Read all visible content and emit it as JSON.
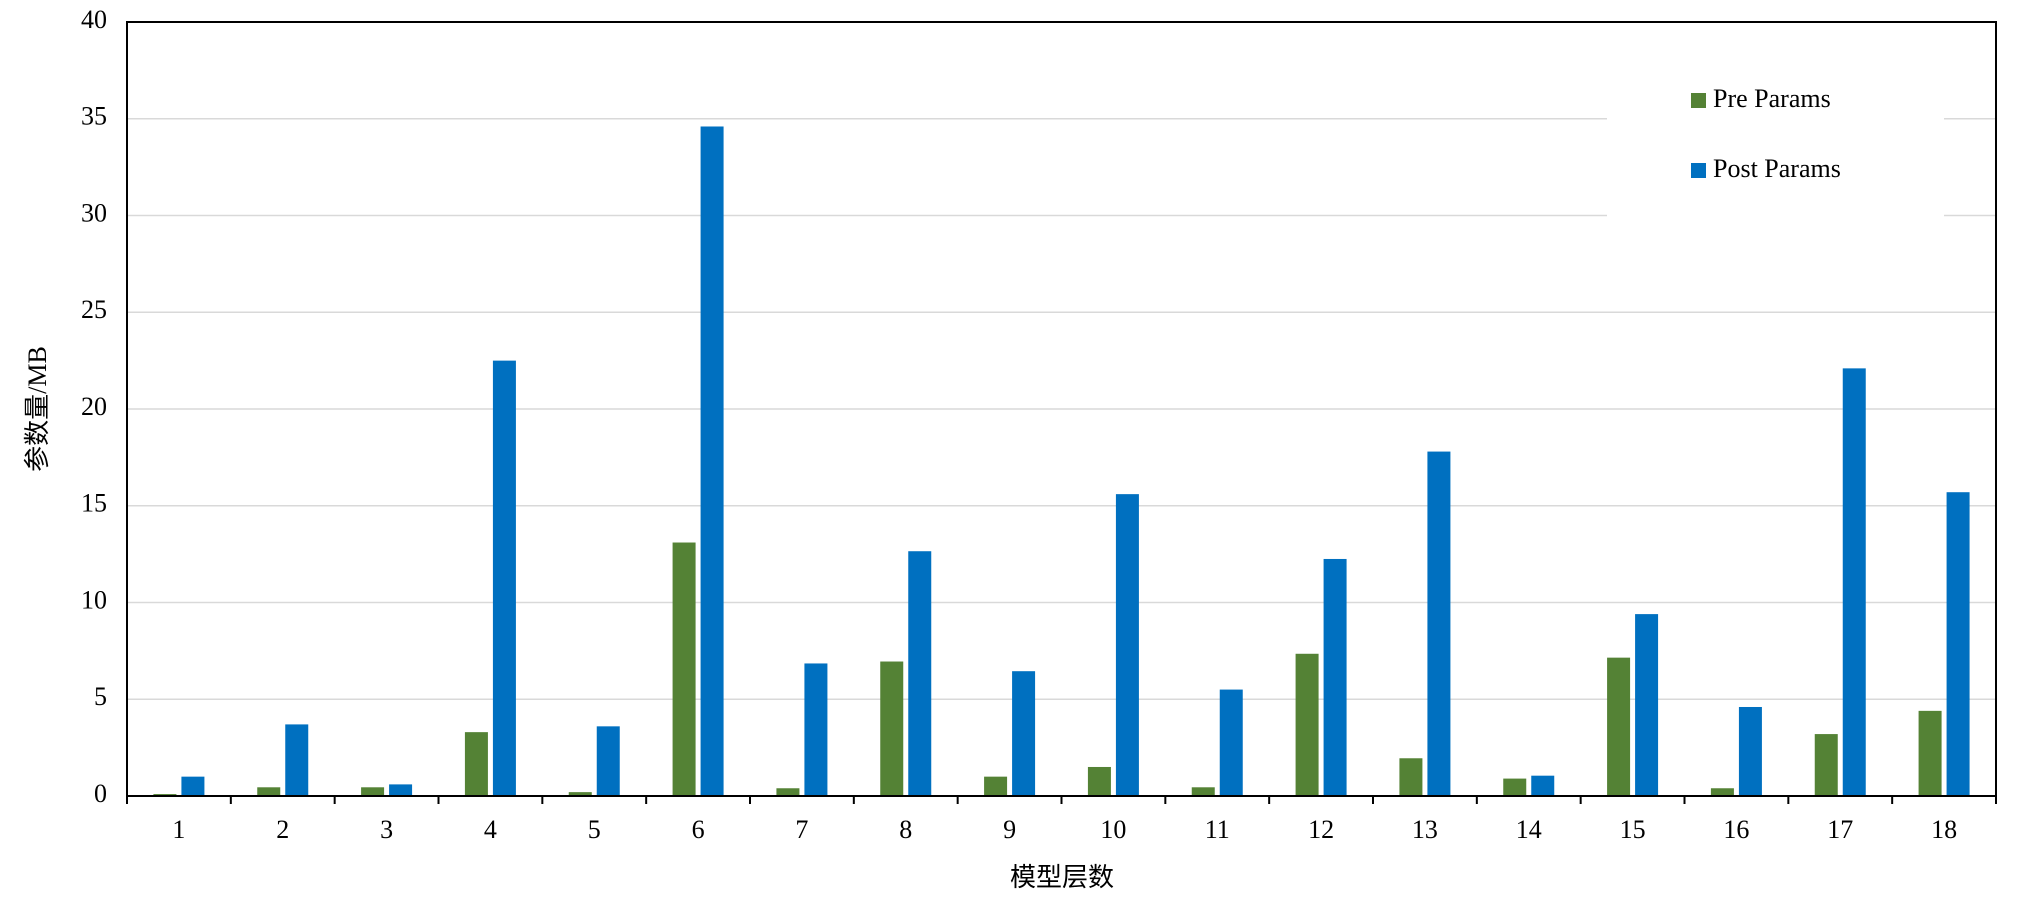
{
  "chart_data": {
    "type": "bar",
    "x_label": "模型层数",
    "y_label": "参数量/MB",
    "categories": [
      "1",
      "2",
      "3",
      "4",
      "5",
      "6",
      "7",
      "8",
      "9",
      "10",
      "11",
      "12",
      "13",
      "14",
      "15",
      "16",
      "17",
      "18"
    ],
    "series": [
      {
        "name": "Pre Params",
        "color": "#548235",
        "values": [
          0.1,
          0.45,
          0.45,
          3.3,
          0.2,
          13.1,
          0.4,
          6.95,
          1.0,
          1.5,
          0.45,
          7.35,
          1.95,
          0.9,
          7.15,
          0.4,
          3.2,
          4.4
        ]
      },
      {
        "name": "Post Params",
        "color": "#0070c0",
        "values": [
          1.0,
          3.7,
          0.6,
          22.5,
          3.6,
          34.6,
          6.85,
          12.65,
          6.45,
          15.6,
          5.5,
          12.25,
          17.8,
          1.05,
          9.4,
          4.6,
          22.1,
          15.7
        ]
      }
    ],
    "ylim": [
      0,
      40
    ],
    "yticks": [
      0,
      5,
      10,
      15,
      20,
      25,
      30,
      35,
      40
    ],
    "grid": true,
    "legend": "upper-right"
  }
}
